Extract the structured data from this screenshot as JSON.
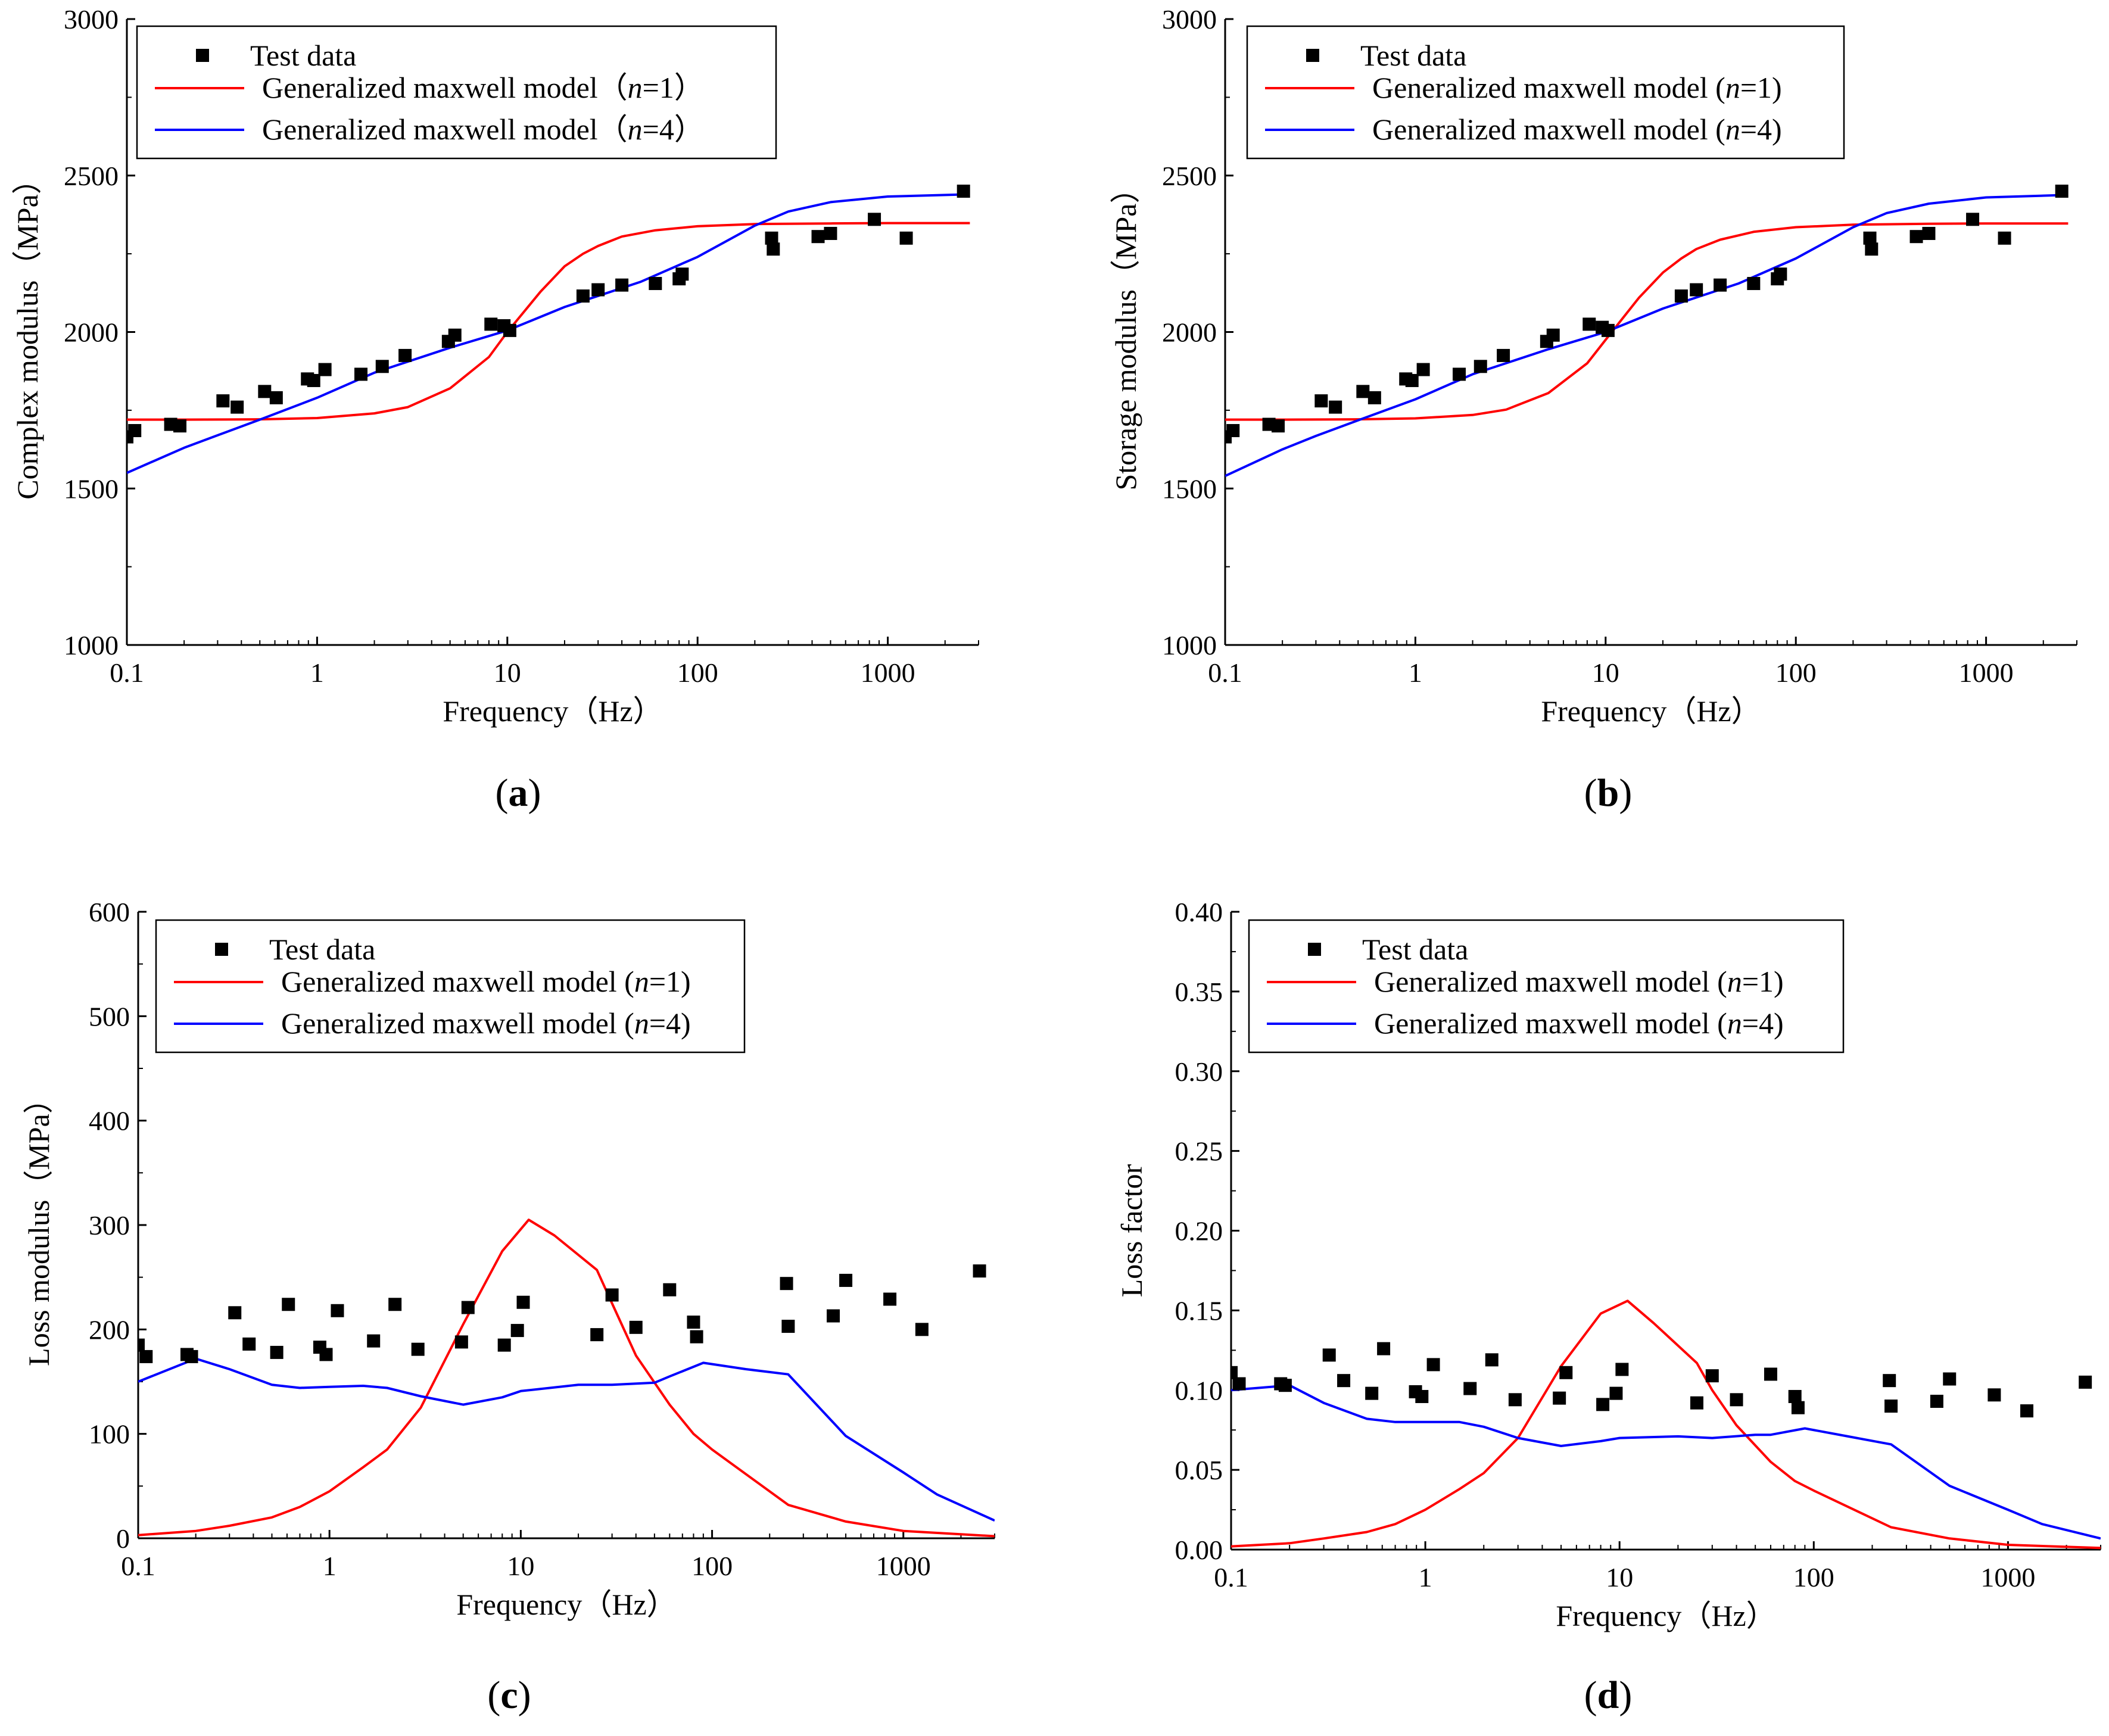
{
  "chart_data": [
    {
      "id": "a",
      "type": "scatter+line",
      "panel_label": "(a)",
      "panel_letter": "a",
      "xlabel": "Frequency（Hz）",
      "ylabel": "Complex modulus（MPa）",
      "xscale": "log",
      "xlim": [
        0.1,
        3000
      ],
      "ylim": [
        1000,
        3000
      ],
      "xticks": [
        0.1,
        1,
        10,
        100,
        1000
      ],
      "xtick_labels": [
        "0.1",
        "1",
        "10",
        "100",
        "1000"
      ],
      "yticks": [
        1000,
        1500,
        2000,
        2500,
        3000
      ],
      "ytick_labels": [
        "1000",
        "1500",
        "2000",
        "2500",
        "3000"
      ],
      "legend_position": "top-left",
      "legend": {
        "test": "Test data",
        "model_prefix": "Generalized maxwell model（",
        "n_var": "n",
        "model1_suffix": "=1）",
        "model4_suffix": "=4）"
      },
      "series": [
        {
          "name": "Test data",
          "kind": "scatter",
          "color": "#000000",
          "x": [
            0.1,
            0.11,
            0.17,
            0.19,
            0.32,
            0.38,
            0.53,
            0.61,
            0.89,
            0.96,
            1.1,
            1.7,
            2.2,
            2.9,
            4.9,
            5.3,
            8.2,
            9.6,
            10.3,
            25,
            30,
            40,
            60,
            80,
            83,
            245,
            250,
            430,
            500,
            850,
            1250,
            2500
          ],
          "y": [
            1665,
            1685,
            1705,
            1700,
            1780,
            1760,
            1810,
            1790,
            1850,
            1845,
            1880,
            1865,
            1890,
            1925,
            1970,
            1990,
            2025,
            2020,
            2005,
            2115,
            2135,
            2150,
            2155,
            2170,
            2185,
            2300,
            2265,
            2305,
            2315,
            2360,
            2300,
            2450
          ]
        },
        {
          "name": "Generalized maxwell model (n=1)",
          "kind": "line",
          "color": "#ff0000",
          "x": [
            0.1,
            0.2,
            0.5,
            1,
            2,
            3,
            5,
            8,
            10,
            15,
            20,
            25,
            30,
            40,
            60,
            100,
            200,
            500,
            1000,
            2700
          ],
          "y": [
            1720,
            1720,
            1721,
            1725,
            1740,
            1760,
            1820,
            1920,
            2000,
            2130,
            2210,
            2250,
            2275,
            2305,
            2325,
            2338,
            2345,
            2347,
            2348,
            2348
          ]
        },
        {
          "name": "Generalized maxwell model (n=4)",
          "kind": "line",
          "color": "#0000ff",
          "x": [
            0.1,
            0.2,
            0.3,
            0.5,
            1,
            2,
            5,
            10,
            20,
            50,
            100,
            200,
            300,
            500,
            1000,
            2700
          ],
          "y": [
            1550,
            1630,
            1670,
            1720,
            1790,
            1870,
            1950,
            2005,
            2080,
            2160,
            2240,
            2340,
            2385,
            2415,
            2433,
            2440
          ]
        }
      ]
    },
    {
      "id": "b",
      "type": "scatter+line",
      "panel_label": "(b)",
      "panel_letter": "b",
      "xlabel": "Frequency（Hz）",
      "ylabel": "Storage modulus（MPa）",
      "xscale": "log",
      "xlim": [
        0.1,
        3000
      ],
      "ylim": [
        1000,
        3000
      ],
      "xticks": [
        0.1,
        1,
        10,
        100,
        1000
      ],
      "xtick_labels": [
        "0.1",
        "1",
        "10",
        "100",
        "1000"
      ],
      "yticks": [
        1000,
        1500,
        2000,
        2500,
        3000
      ],
      "ytick_labels": [
        "1000",
        "1500",
        "2000",
        "2500",
        "3000"
      ],
      "legend_position": "top-left",
      "legend": {
        "test": "Test data",
        "model_prefix": "Generalized maxwell model (",
        "n_var": "n",
        "model1_suffix": "=1)",
        "model4_suffix": "=4)"
      },
      "series": [
        {
          "name": "Test data",
          "kind": "scatter",
          "color": "#000000",
          "x": [
            0.1,
            0.11,
            0.17,
            0.19,
            0.32,
            0.38,
            0.53,
            0.61,
            0.89,
            0.96,
            1.1,
            1.7,
            2.2,
            2.9,
            4.9,
            5.3,
            8.2,
            9.6,
            10.3,
            25,
            30,
            40,
            60,
            80,
            83,
            245,
            250,
            430,
            500,
            850,
            1250,
            2500
          ],
          "y": [
            1665,
            1685,
            1705,
            1700,
            1780,
            1760,
            1810,
            1790,
            1850,
            1845,
            1880,
            1865,
            1890,
            1925,
            1970,
            1990,
            2025,
            2015,
            2005,
            2115,
            2135,
            2150,
            2155,
            2170,
            2185,
            2300,
            2265,
            2305,
            2315,
            2360,
            2300,
            2450
          ]
        },
        {
          "name": "Generalized maxwell model (n=1)",
          "kind": "line",
          "color": "#ff0000",
          "x": [
            0.1,
            0.2,
            0.5,
            1,
            2,
            3,
            5,
            8,
            10,
            15,
            20,
            25,
            30,
            40,
            60,
            100,
            200,
            500,
            1000,
            2700
          ],
          "y": [
            1720,
            1720,
            1721,
            1724,
            1735,
            1752,
            1805,
            1900,
            1975,
            2110,
            2190,
            2235,
            2265,
            2295,
            2320,
            2335,
            2343,
            2346,
            2347,
            2347
          ]
        },
        {
          "name": "Generalized maxwell model (n=4)",
          "kind": "line",
          "color": "#0000ff",
          "x": [
            0.1,
            0.2,
            0.3,
            0.5,
            1,
            2,
            5,
            10,
            20,
            50,
            100,
            200,
            300,
            500,
            1000,
            2700
          ],
          "y": [
            1540,
            1625,
            1668,
            1718,
            1785,
            1865,
            1945,
            2000,
            2075,
            2155,
            2235,
            2335,
            2380,
            2410,
            2430,
            2438
          ]
        }
      ]
    },
    {
      "id": "c",
      "type": "scatter+line",
      "panel_label": "(c)",
      "panel_letter": "c",
      "xlabel": "Frequency（Hz）",
      "ylabel": "Loss modulus（MPa）",
      "xscale": "log",
      "xlim": [
        0.1,
        3000
      ],
      "ylim": [
        0,
        600
      ],
      "xticks": [
        0.1,
        1,
        10,
        100,
        1000
      ],
      "xtick_labels": [
        "0.1",
        "1",
        "10",
        "100",
        "1000"
      ],
      "yticks": [
        0,
        100,
        200,
        300,
        400,
        500,
        600
      ],
      "ytick_labels": [
        "0",
        "100",
        "200",
        "300",
        "400",
        "500",
        "600"
      ],
      "legend_position": "top-left",
      "legend": {
        "test": "Test data",
        "model_prefix": "Generalized maxwell model (",
        "n_var": "n",
        "model1_suffix": "=1)",
        "model4_suffix": "=4)"
      },
      "series": [
        {
          "name": "Test data",
          "kind": "scatter",
          "color": "#000000",
          "x": [
            0.1,
            0.11,
            0.18,
            0.19,
            0.32,
            0.38,
            0.53,
            0.61,
            0.89,
            0.96,
            1.1,
            1.7,
            2.2,
            2.9,
            4.9,
            5.3,
            8.2,
            9.6,
            10.3,
            25,
            30,
            40,
            60,
            80,
            83,
            245,
            250,
            430,
            500,
            850,
            1250,
            2500
          ],
          "y": [
            185,
            174,
            176,
            174,
            216,
            186,
            178,
            224,
            183,
            176,
            218,
            189,
            224,
            181,
            188,
            221,
            185,
            199,
            226,
            195,
            233,
            202,
            238,
            207,
            193,
            244,
            203,
            213,
            247,
            229,
            200,
            256
          ]
        },
        {
          "name": "Generalized maxwell model (n=1)",
          "kind": "line",
          "color": "#ff0000",
          "x": [
            0.1,
            0.2,
            0.3,
            0.5,
            0.7,
            1,
            1.5,
            2,
            3,
            5,
            8,
            11,
            15,
            25,
            30,
            40,
            60,
            80,
            100,
            250,
            500,
            1000,
            3000
          ],
          "y": [
            3,
            7,
            12,
            20,
            30,
            45,
            68,
            85,
            125,
            205,
            275,
            305,
            290,
            257,
            225,
            175,
            128,
            100,
            85,
            32,
            16,
            7,
            2
          ]
        },
        {
          "name": "Generalized maxwell model (n=4)",
          "kind": "line",
          "color": "#0000ff",
          "x": [
            0.1,
            0.2,
            0.3,
            0.5,
            0.7,
            1,
            1.5,
            2,
            3,
            5,
            8,
            10,
            20,
            30,
            50,
            60,
            90,
            150,
            250,
            500,
            1000,
            1500,
            3000
          ],
          "y": [
            150,
            172,
            162,
            147,
            144,
            145,
            146,
            144,
            136,
            128,
            135,
            141,
            147,
            147,
            149,
            155,
            168,
            162,
            157,
            98,
            63,
            42,
            17
          ]
        }
      ]
    },
    {
      "id": "d",
      "type": "scatter+line",
      "panel_label": "(d)",
      "panel_letter": "d",
      "xlabel": "Frequency（Hz）",
      "ylabel": "Loss factor",
      "xscale": "log",
      "xlim": [
        0.1,
        3000
      ],
      "ylim": [
        0,
        0.4
      ],
      "xticks": [
        0.1,
        1,
        10,
        100,
        1000
      ],
      "xtick_labels": [
        "0.1",
        "1",
        "10",
        "100",
        "1000"
      ],
      "yticks": [
        0,
        0.05,
        0.1,
        0.15,
        0.2,
        0.25,
        0.3,
        0.35,
        0.4
      ],
      "ytick_labels": [
        "0.00",
        "0.05",
        "0.10",
        "0.15",
        "0.20",
        "0.25",
        "0.30",
        "0.35",
        "0.40"
      ],
      "legend_position": "top-left",
      "legend": {
        "test": "Test data",
        "model_prefix": "Generalized maxwell model (",
        "n_var": "n",
        "model1_suffix": "=1)",
        "model4_suffix": "=4)"
      },
      "series": [
        {
          "name": "Test data",
          "kind": "scatter",
          "color": "#000000",
          "x": [
            0.1,
            0.11,
            0.18,
            0.19,
            0.32,
            0.38,
            0.53,
            0.61,
            0.89,
            0.96,
            1.1,
            1.7,
            2.2,
            2.9,
            4.9,
            5.3,
            8.2,
            9.6,
            10.3,
            25,
            30,
            40,
            60,
            80,
            83,
            245,
            250,
            430,
            500,
            850,
            1250,
            2500
          ],
          "y": [
            0.111,
            0.104,
            0.104,
            0.103,
            0.122,
            0.106,
            0.098,
            0.126,
            0.099,
            0.096,
            0.116,
            0.101,
            0.119,
            0.094,
            0.095,
            0.111,
            0.091,
            0.098,
            0.113,
            0.092,
            0.109,
            0.094,
            0.11,
            0.096,
            0.089,
            0.106,
            0.09,
            0.093,
            0.107,
            0.097,
            0.087,
            0.105
          ]
        },
        {
          "name": "Generalized maxwell model (n=1)",
          "kind": "line",
          "color": "#ff0000",
          "x": [
            0.1,
            0.2,
            0.3,
            0.5,
            0.7,
            1,
            1.5,
            2,
            3,
            5,
            8,
            11,
            15,
            25,
            30,
            40,
            60,
            80,
            100,
            250,
            500,
            1000,
            3000
          ],
          "y": [
            0.002,
            0.004,
            0.007,
            0.011,
            0.016,
            0.025,
            0.038,
            0.048,
            0.07,
            0.115,
            0.148,
            0.156,
            0.142,
            0.117,
            0.1,
            0.078,
            0.055,
            0.043,
            0.037,
            0.014,
            0.007,
            0.003,
            0.001
          ]
        },
        {
          "name": "Generalized maxwell model (n=4)",
          "kind": "line",
          "color": "#0000ff",
          "x": [
            0.1,
            0.2,
            0.3,
            0.5,
            0.7,
            1,
            1.5,
            2,
            3,
            5,
            8,
            10,
            20,
            30,
            50,
            60,
            90,
            150,
            250,
            500,
            1000,
            1500,
            3000
          ],
          "y": [
            0.1,
            0.103,
            0.092,
            0.082,
            0.08,
            0.08,
            0.08,
            0.077,
            0.07,
            0.065,
            0.068,
            0.07,
            0.071,
            0.07,
            0.072,
            0.072,
            0.076,
            0.071,
            0.066,
            0.04,
            0.025,
            0.016,
            0.007
          ]
        }
      ]
    }
  ]
}
